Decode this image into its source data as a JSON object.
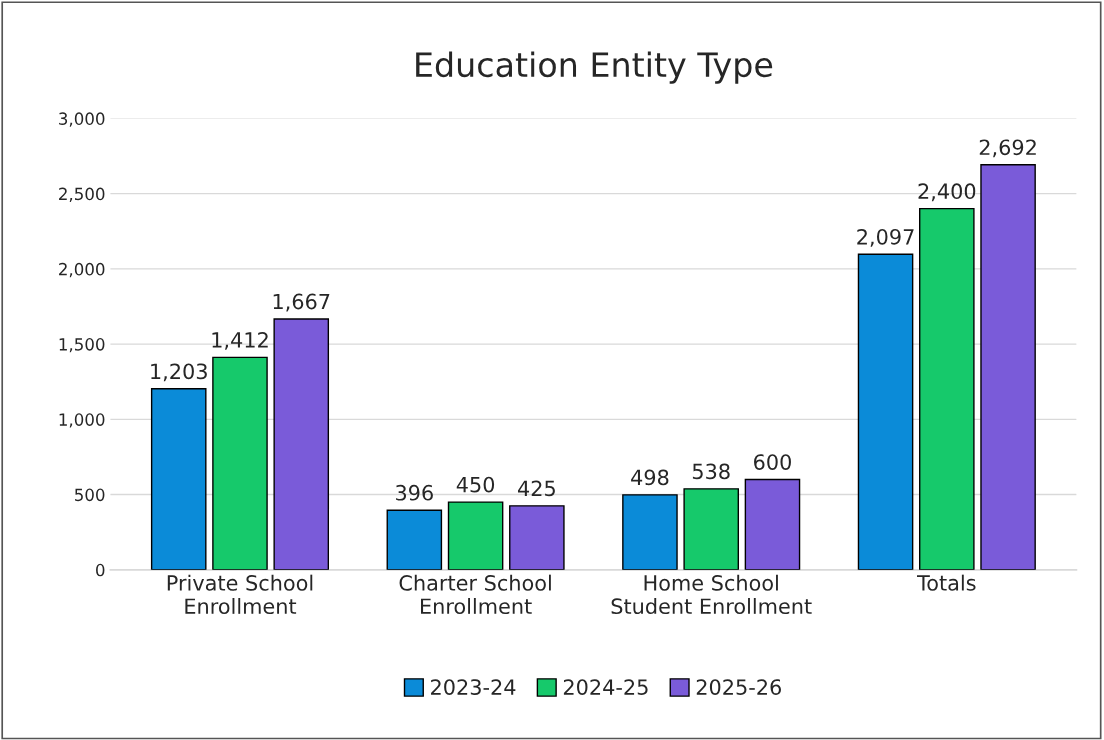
{
  "chart_data": {
    "type": "bar",
    "title": "Education Entity Type",
    "categories": [
      "Private School\nEnrollment",
      "Charter School\nEnrollment",
      "Home School\nStudent Enrollment",
      "Totals"
    ],
    "series": [
      {
        "name": "2023-24",
        "color": "#0b8bd8",
        "values": [
          1203,
          396,
          498,
          2097
        ],
        "value_labels": [
          "1,203",
          "396",
          "498",
          "2,097"
        ]
      },
      {
        "name": "2024-25",
        "color": "#16c96b",
        "values": [
          1412,
          450,
          538,
          2400
        ],
        "value_labels": [
          "1,412",
          "450",
          "538",
          "2,400"
        ]
      },
      {
        "name": "2025-26",
        "color": "#7a5bd9",
        "values": [
          1667,
          425,
          600,
          2692
        ],
        "value_labels": [
          "1,667",
          "425",
          "600",
          "2,692"
        ]
      }
    ],
    "ylim": [
      0,
      3000
    ],
    "yticks": [
      {
        "value": 0,
        "label": "0"
      },
      {
        "value": 500,
        "label": "500"
      },
      {
        "value": 1000,
        "label": "1,000"
      },
      {
        "value": 1500,
        "label": "1,500"
      },
      {
        "value": 2000,
        "label": "2,000"
      },
      {
        "value": 2500,
        "label": "2,500"
      },
      {
        "value": 3000,
        "label": "3,000"
      }
    ],
    "grid": "y",
    "legend": "bottom"
  }
}
